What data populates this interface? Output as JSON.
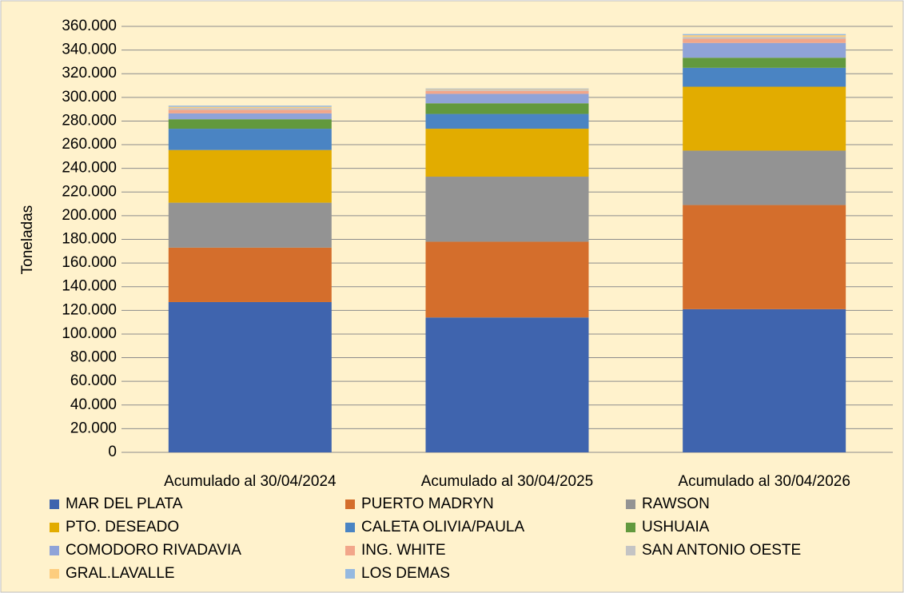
{
  "chart_data": {
    "type": "stacked_bar",
    "ylabel": "Toneladas",
    "categories": [
      "Acumulado al 30/04/2024",
      "Acumulado al 30/04/2025",
      "Acumulado al 30/04/2026"
    ],
    "series": [
      {
        "name": "MAR DEL PLATA",
        "color": "#3f64ae",
        "values": [
          127000,
          114000,
          121000
        ]
      },
      {
        "name": "PUERTO MADRYN",
        "color": "#d46e2c",
        "values": [
          46000,
          64000,
          88000
        ]
      },
      {
        "name": "RAWSON",
        "color": "#939393",
        "values": [
          38000,
          55000,
          46000
        ]
      },
      {
        "name": "PTO. DESEADO",
        "color": "#e2ac00",
        "values": [
          44500,
          40500,
          54000
        ]
      },
      {
        "name": "CALETA OLIVIA/PAULA",
        "color": "#4a84c3",
        "values": [
          18000,
          12500,
          16000
        ]
      },
      {
        "name": "USHUAIA",
        "color": "#62993e",
        "values": [
          8000,
          9000,
          8500
        ]
      },
      {
        "name": "COMODORO RIVADAVIA",
        "color": "#8fa3d8",
        "values": [
          5000,
          8000,
          12500
        ]
      },
      {
        "name": "ING. WHITE",
        "color": "#f2a68a",
        "values": [
          3000,
          2500,
          3500
        ]
      },
      {
        "name": "SAN ANTONIO OESTE",
        "color": "#c4c4c4",
        "values": [
          1500,
          1000,
          1500
        ]
      },
      {
        "name": "GRAL.LAVALLE",
        "color": "#fdcd7e",
        "values": [
          1000,
          500,
          1500
        ]
      },
      {
        "name": "LOS DEMAS",
        "color": "#95b9e0",
        "values": [
          1000,
          500,
          1000
        ]
      }
    ],
    "ylim": [
      0,
      360000
    ],
    "yticks": [
      0,
      {
        "value": 20000,
        "label": "20.000"
      },
      {
        "value": 40000,
        "label": "40.000"
      },
      {
        "value": 60000,
        "label": "60.000"
      },
      {
        "value": 80000,
        "label": "80.000"
      },
      {
        "value": 100000,
        "label": "100.000"
      },
      {
        "value": 120000,
        "label": "120.000"
      },
      {
        "value": 140000,
        "label": "140.000"
      },
      {
        "value": 160000,
        "label": "160.000"
      },
      {
        "value": 180000,
        "label": "180.000"
      },
      {
        "value": 200000,
        "label": "200.000"
      },
      {
        "value": 220000,
        "label": "220.000"
      },
      {
        "value": 240000,
        "label": "240.000"
      },
      {
        "value": 260000,
        "label": "260.000"
      },
      {
        "value": 280000,
        "label": "280.000"
      },
      {
        "value": 300000,
        "label": "300.000"
      },
      {
        "value": 320000,
        "label": "320.000"
      },
      {
        "value": 340000,
        "label": "340.000"
      },
      {
        "value": 360000,
        "label": "360.000"
      }
    ],
    "grid": true
  }
}
